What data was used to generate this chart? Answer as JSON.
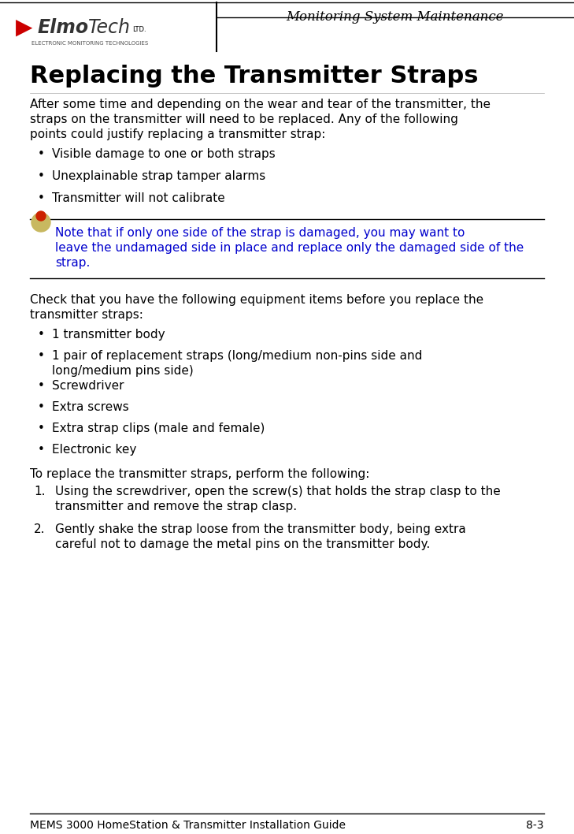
{
  "header_title": "Monitoring System Maintenance",
  "footer_left": "MEMS 3000 HomeStation & Transmitter Installation Guide",
  "footer_right": "8-3",
  "page_title": "Replacing the Transmitter Straps",
  "intro_lines": [
    "After some time and depending on the wear and tear of the transmitter, the",
    "straps on the transmitter will need to be replaced. Any of the following",
    "points could justify replacing a transmitter strap:"
  ],
  "bullets1": [
    "Visible damage to one or both straps",
    "Unexplainable strap tamper alarms",
    "Transmitter will not calibrate"
  ],
  "note_lines": [
    "Note that if only one side of the strap is damaged, you may want to",
    "leave the undamaged side in place and replace only the damaged side of the",
    "strap."
  ],
  "check_lines": [
    "Check that you have the following equipment items before you replace the",
    "transmitter straps:"
  ],
  "bullets2": [
    [
      "1 transmitter body"
    ],
    [
      "1 pair of replacement straps (long/medium non-pins side and",
      "long/medium pins side)"
    ],
    [
      "Screwdriver"
    ],
    [
      "Extra screws"
    ],
    [
      "Extra strap clips (male and female)"
    ],
    [
      "Electronic key"
    ]
  ],
  "steps_intro": "To replace the transmitter straps, perform the following:",
  "steps": [
    [
      "Using the screwdriver, open the screw(s) that holds the strap clasp to the",
      "transmitter and remove the strap clasp."
    ],
    [
      "Gently shake the strap loose from the transmitter body, being extra",
      "careful not to damage the metal pins on the transmitter body."
    ]
  ],
  "bg_color": "#ffffff",
  "text_color": "#000000",
  "note_color": "#0000CD",
  "header_line_color": "#000000",
  "footer_line_color": "#000000"
}
